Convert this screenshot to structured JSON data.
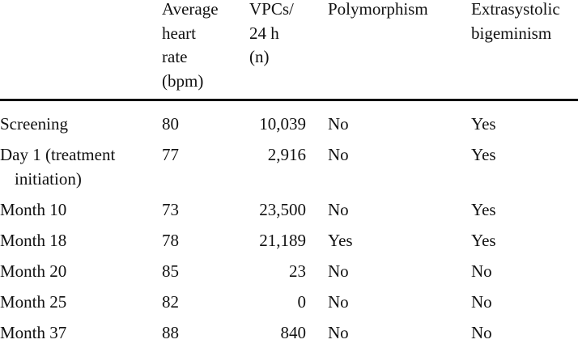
{
  "table": {
    "header": [
      [],
      [
        "Average",
        "heart",
        "rate",
        "(bpm)"
      ],
      [
        "VPCs/",
        "24 h",
        "(n)"
      ],
      [
        "Polymorphism"
      ],
      [
        "Extrasystolic",
        "bigeminism"
      ]
    ],
    "rows": [
      [
        "Screening",
        "80",
        "10,039",
        "No",
        "Yes"
      ],
      [
        "Day 1 (treatment initiation)",
        "77",
        "2,916",
        "No",
        "Yes"
      ],
      [
        "Month 10",
        "73",
        "23,500",
        "No",
        "Yes"
      ],
      [
        "Month 18",
        "78",
        "21,189",
        "Yes",
        "Yes"
      ],
      [
        "Month 20",
        "85",
        "23",
        "No",
        "No"
      ],
      [
        "Month 25",
        "82",
        "0",
        "No",
        "No"
      ],
      [
        "Month 37",
        "88",
        "840",
        "No",
        "No"
      ]
    ]
  }
}
